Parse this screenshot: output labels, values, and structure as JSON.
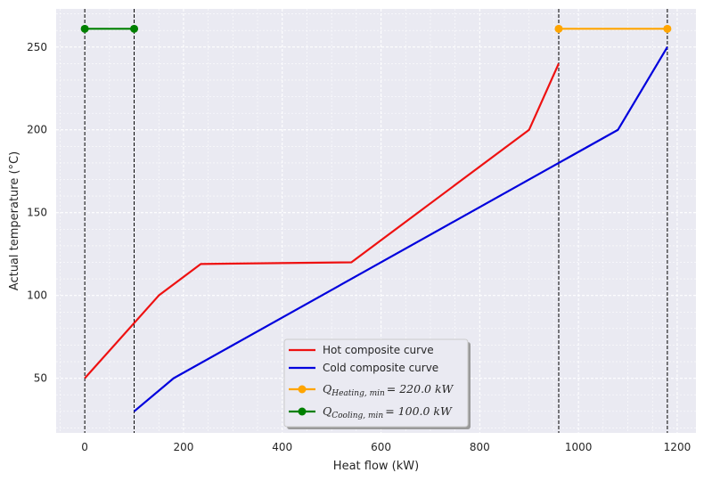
{
  "chart_data": {
    "type": "line",
    "title": "",
    "xlabel": "Heat flow (kW)",
    "ylabel": "Actual temperature (°C)",
    "xlim": [
      -58,
      1238
    ],
    "ylim": [
      17,
      273
    ],
    "xticks": [
      0,
      200,
      400,
      600,
      800,
      1000,
      1200
    ],
    "yticks": [
      50,
      100,
      150,
      200,
      250
    ],
    "grid": true,
    "minor_grid": true,
    "legend_position": "lower-center",
    "series": [
      {
        "name": "Hot composite curve",
        "color": "#ee1111",
        "x": [
          0,
          150,
          235,
          540,
          900,
          960
        ],
        "y": [
          50,
          100,
          119,
          120,
          200,
          240
        ]
      },
      {
        "name": "Cold composite curve",
        "color": "#0000dd",
        "x": [
          100,
          180,
          1080,
          1180
        ],
        "y": [
          30,
          50,
          200,
          250
        ]
      },
      {
        "name": "Q_{Heating,min} = 220.0 kW",
        "legend_main": "Q",
        "legend_sub": "Heating, min",
        "legend_rest": "= 220.0 kW",
        "color": "#ffa500",
        "markers": true,
        "x": [
          960,
          1180
        ],
        "y": [
          261,
          261
        ]
      },
      {
        "name": "Q_{Cooling,min} = 100.0 kW",
        "legend_main": "Q",
        "legend_sub": "Cooling, min",
        "legend_rest": "= 100.0 kW",
        "color": "#008000",
        "markers": true,
        "x": [
          0,
          100
        ],
        "y": [
          261,
          261
        ]
      }
    ],
    "vertical_lines": [
      0,
      100,
      960,
      1180
    ]
  }
}
